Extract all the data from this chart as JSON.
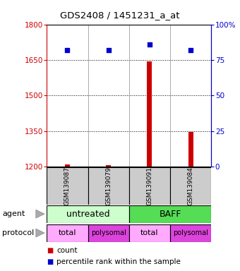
{
  "title": "GDS2408 / 1451231_a_at",
  "samples": [
    "GSM139087",
    "GSM139079",
    "GSM139091",
    "GSM139084"
  ],
  "bar_values": [
    1210,
    1205,
    1645,
    1345
  ],
  "scatter_values": [
    82,
    82,
    86,
    82
  ],
  "ylim_left": [
    1200,
    1800
  ],
  "ylim_right": [
    0,
    100
  ],
  "yticks_left": [
    1200,
    1350,
    1500,
    1650,
    1800
  ],
  "yticks_right": [
    0,
    25,
    50,
    75,
    100
  ],
  "ytick_labels_right": [
    "0",
    "25",
    "50",
    "75",
    "100%"
  ],
  "bar_color": "#cc0000",
  "scatter_color": "#0000cc",
  "agent_labels": [
    "untreated",
    "BAFF"
  ],
  "agent_colors": [
    "#ccffcc",
    "#55dd55"
  ],
  "protocol_colors_alt": [
    "#ffaaff",
    "#dd44dd",
    "#ffaaff",
    "#dd44dd"
  ],
  "protocol_labels": [
    "total",
    "polysomal",
    "total",
    "polysomal"
  ],
  "legend_count_color": "#cc0000",
  "legend_pct_color": "#0000cc",
  "background_color": "#ffffff",
  "axis_label_color_left": "#cc0000",
  "axis_label_color_right": "#0000cc",
  "sample_box_color": "#cccccc",
  "grid_dotted_color": "#000000"
}
